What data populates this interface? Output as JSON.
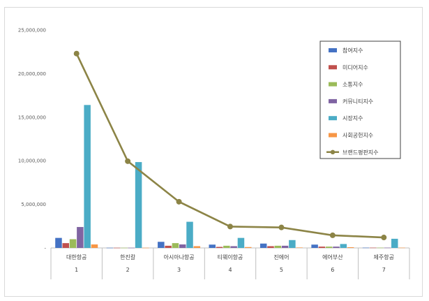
{
  "chart_data": {
    "type": "bar",
    "categories": [
      "대한항공",
      "한진칼",
      "아시아나항공",
      "티웨이항공",
      "진에어",
      "에어부산",
      "제주항공"
    ],
    "category_numbers": [
      "1",
      "2",
      "3",
      "4",
      "5",
      "6",
      "7"
    ],
    "ylim": [
      0,
      25000000
    ],
    "yticks": [
      "-",
      "5,000,000",
      "10,000,000",
      "15,000,000",
      "20,000,000",
      "25,000,000"
    ],
    "ytick_values": [
      0,
      5000000,
      10000000,
      15000000,
      20000000,
      25000000
    ],
    "grid": false,
    "legend_position": "top-right",
    "series": [
      {
        "name": "참여지수",
        "color": "#4472c4",
        "values": [
          1150000,
          20000,
          700000,
          380000,
          500000,
          380000,
          30000
        ]
      },
      {
        "name": "미디어지수",
        "color": "#c0504d",
        "values": [
          550000,
          20000,
          250000,
          120000,
          200000,
          150000,
          30000
        ]
      },
      {
        "name": "소통지수",
        "color": "#9bbb59",
        "values": [
          1000000,
          20000,
          550000,
          250000,
          250000,
          150000,
          30000
        ]
      },
      {
        "name": "커뮤니티지수",
        "color": "#8064a2",
        "values": [
          2400000,
          20000,
          400000,
          200000,
          250000,
          150000,
          30000
        ]
      },
      {
        "name": "시장지수",
        "color": "#4bacc6",
        "values": [
          16400000,
          9850000,
          3000000,
          1150000,
          900000,
          450000,
          1050000
        ]
      },
      {
        "name": "사회공헌지수",
        "color": "#f79646",
        "values": [
          400000,
          20000,
          200000,
          100000,
          50000,
          80000,
          30000
        ]
      }
    ],
    "line_series": {
      "name": "브랜드평판지수",
      "color": "#8c8446",
      "values": [
        22300000,
        9950000,
        5300000,
        2450000,
        2350000,
        1450000,
        1200000
      ]
    }
  }
}
